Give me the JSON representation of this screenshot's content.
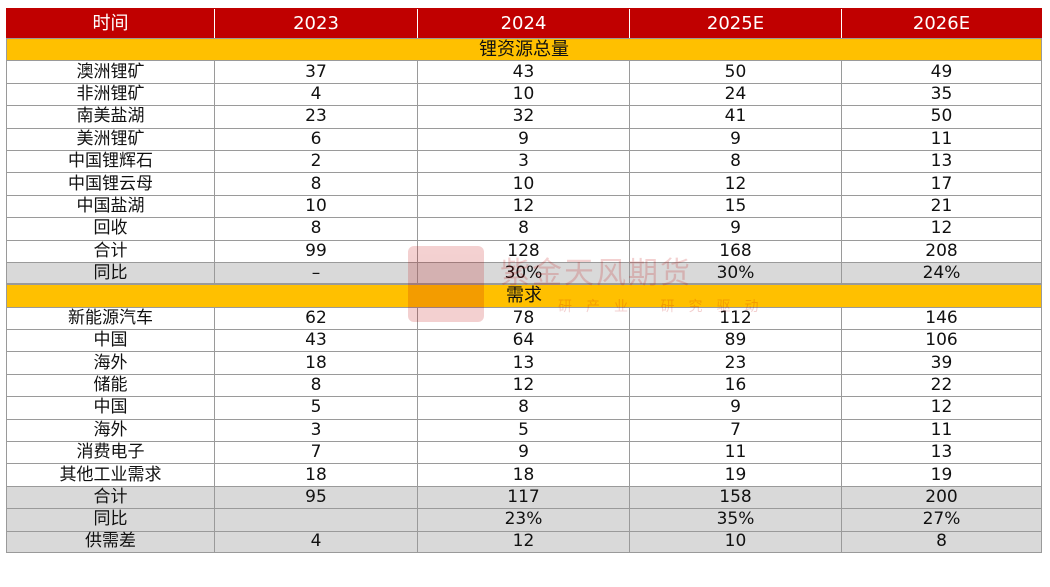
{
  "header": [
    "时间",
    "2023",
    "2024",
    "2025E",
    "2026E"
  ],
  "supply": {
    "title": "锂资源总量",
    "rows": [
      [
        "澳洲锂矿",
        "37",
        "43",
        "50",
        "49"
      ],
      [
        "非洲锂矿",
        "4",
        "10",
        "24",
        "35"
      ],
      [
        "南美盐湖",
        "23",
        "32",
        "41",
        "50"
      ],
      [
        "美洲锂矿",
        "6",
        "9",
        "9",
        "11"
      ],
      [
        "中国锂辉石",
        "2",
        "3",
        "8",
        "13"
      ],
      [
        "中国锂云母",
        "8",
        "10",
        "12",
        "17"
      ],
      [
        "中国盐湖",
        "10",
        "12",
        "15",
        "21"
      ],
      [
        "回收",
        "8",
        "8",
        "9",
        "12"
      ],
      [
        "合计",
        "99",
        "128",
        "168",
        "208"
      ],
      [
        "同比",
        "–",
        "30%",
        "30%",
        "24%"
      ]
    ],
    "gray_rows": [
      9
    ]
  },
  "demand": {
    "title": "需求",
    "rows": [
      [
        "新能源汽车",
        "62",
        "78",
        "112",
        "146"
      ],
      [
        "中国",
        "43",
        "64",
        "89",
        "106"
      ],
      [
        "海外",
        "18",
        "13",
        "23",
        "39"
      ],
      [
        "储能",
        "8",
        "12",
        "16",
        "22"
      ],
      [
        "中国",
        "5",
        "8",
        "9",
        "12"
      ],
      [
        "海外",
        "3",
        "5",
        "7",
        "11"
      ],
      [
        "消费电子",
        "7",
        "9",
        "11",
        "13"
      ],
      [
        "其他工业需求",
        "18",
        "18",
        "19",
        "19"
      ],
      [
        "合计",
        "95",
        "117",
        "158",
        "200"
      ],
      [
        "同比",
        "",
        "23%",
        "35%",
        "27%"
      ],
      [
        "供需差",
        "4",
        "12",
        "10",
        "8"
      ]
    ],
    "gray_rows": [
      8,
      9,
      10
    ]
  },
  "watermark": {
    "text": "紫金天风期货",
    "sub": "研产业 研究驱动"
  },
  "colors": {
    "header": "#c00000",
    "section": "#ffc000",
    "gray": "#d9d9d9"
  }
}
